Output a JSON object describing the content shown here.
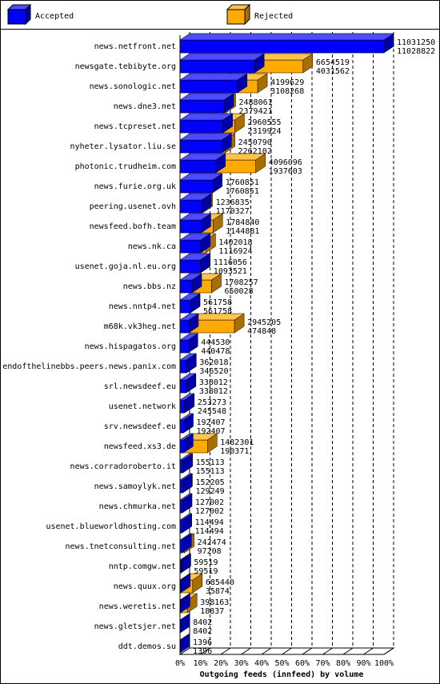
{
  "chart_data": {
    "type": "bar3d",
    "orientation": "horizontal",
    "title": "Outgoing feeds (innfeed) by volume",
    "categories": [
      "news.netfront.net",
      "newsgate.tebibyte.org",
      "news.sonologic.net",
      "news.dne3.net",
      "news.tcpreset.net",
      "nyheter.lysator.liu.se",
      "photonic.trudheim.com",
      "news.furie.org.uk",
      "peering.usenet.ovh",
      "newsfeed.bofh.team",
      "news.nk.ca",
      "usenet.goja.nl.eu.org",
      "news.bbs.nz",
      "news.nntp4.net",
      "m68k.vk3heg.net",
      "news.hispagatos.org",
      "endofthelinebbs.peers.news.panix.com",
      "srl.newsdeef.eu",
      "usenet.network",
      "srv.newsdeef.eu",
      "newsfeed.xs3.de",
      "news.corradoroberto.it",
      "news.samoylyk.net",
      "news.chmurka.net",
      "usenet.blueworldhosting.com",
      "news.tnetconsulting.net",
      "nntp.comgw.net",
      "news.quux.org",
      "news.weretis.net",
      "news.gletsjer.net",
      "ddt.demos.su"
    ],
    "series": [
      {
        "name": "Accepted",
        "color": "#0000ff",
        "values": [
          11028822,
          4031562,
          3108268,
          2379421,
          2319924,
          2262102,
          1937603,
          1760851,
          1170327,
          1144881,
          1116924,
          1093521,
          650028,
          561758,
          474848,
          440478,
          346520,
          338012,
          245548,
          192407,
          190371,
          155113,
          129249,
          127002,
          114494,
          97208,
          59519,
          35874,
          18837,
          8402,
          1396
        ]
      },
      {
        "name": "Rejected",
        "color": "#ffaa00",
        "values": [
          11031250,
          6654519,
          4199629,
          2488061,
          2960555,
          2450790,
          4096096,
          1760851,
          1236835,
          1784840,
          1402018,
          1116056,
          1708257,
          561758,
          2945205,
          444530,
          362018,
          338012,
          253273,
          192407,
          1482301,
          155113,
          152205,
          127002,
          114494,
          242474,
          59519,
          685440,
          398163,
          8402,
          1396
        ]
      }
    ],
    "xlim": [
      0,
      11031250
    ],
    "xticks": [
      {
        "value": 0,
        "label": "0%"
      },
      {
        "value": 1103125,
        "label": "10%"
      },
      {
        "value": 2206250,
        "label": "20%"
      },
      {
        "value": 3309375,
        "label": "30%"
      },
      {
        "value": 4412500,
        "label": "40%"
      },
      {
        "value": 5515625,
        "label": "50%"
      },
      {
        "value": 6618750,
        "label": "60%"
      },
      {
        "value": 7721875,
        "label": "70%"
      },
      {
        "value": 8825000,
        "label": "80%"
      },
      {
        "value": 9928125,
        "label": "90%"
      },
      {
        "value": 11031250,
        "label": "100%"
      }
    ],
    "grid": true,
    "legend": "top"
  }
}
